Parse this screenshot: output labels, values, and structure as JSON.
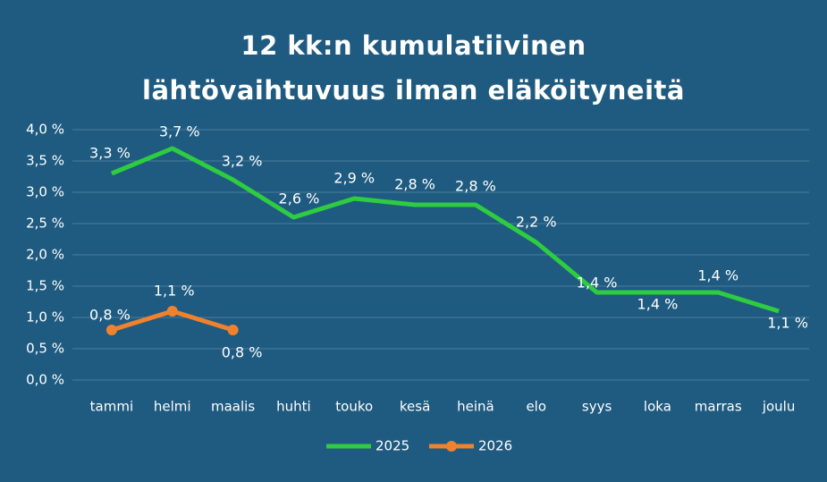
{
  "chart_data": {
    "type": "line",
    "title": "12 kk:n kumulatiivinen lähtövaihtuvuus ilman eläköityneitä",
    "categories": [
      "tammi",
      "helmi",
      "maalis",
      "huhti",
      "touko",
      "kesä",
      "heinä",
      "elo",
      "syys",
      "loka",
      "marras",
      "joulu"
    ],
    "series": [
      {
        "name": "2025",
        "color": "#2ecc40",
        "marker": false,
        "values": [
          3.3,
          3.7,
          3.2,
          2.6,
          2.9,
          2.8,
          2.8,
          2.2,
          1.4,
          1.4,
          1.4,
          1.1
        ],
        "value_labels": [
          "3,3 %",
          "3,7 %",
          "3,2 %",
          "2,6 %",
          "2,9 %",
          "2,8 %",
          "2,8 %",
          "2,2 %",
          "1,4 %",
          "1,4 %",
          "1,4 %",
          "1,1 %"
        ]
      },
      {
        "name": "2026",
        "color": "#f0822e",
        "marker": true,
        "values": [
          0.8,
          1.1,
          0.8,
          null,
          null,
          null,
          null,
          null,
          null,
          null,
          null,
          null
        ],
        "value_labels": [
          "0,8 %",
          "1,1 %",
          "0,8 %",
          null,
          null,
          null,
          null,
          null,
          null,
          null,
          null,
          null
        ]
      }
    ],
    "ylim": [
      0,
      4
    ],
    "yticks": [
      {
        "value": 0,
        "label": "0,0 %"
      },
      {
        "value": 0.5,
        "label": "0,5 %"
      },
      {
        "value": 1,
        "label": "1,0 %"
      },
      {
        "value": 1.5,
        "label": "1,5 %"
      },
      {
        "value": 2,
        "label": "2,0 %"
      },
      {
        "value": 2.5,
        "label": "2,5 %"
      },
      {
        "value": 3,
        "label": "3,0 %"
      },
      {
        "value": 3.5,
        "label": "3,5 %"
      },
      {
        "value": 4,
        "label": "4,0 %"
      }
    ],
    "grid": true,
    "legend": "bottom"
  }
}
